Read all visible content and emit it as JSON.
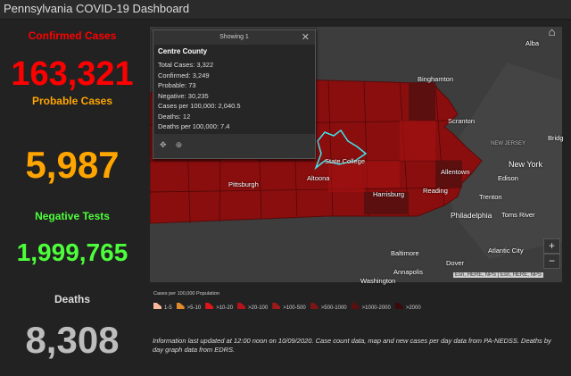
{
  "title": "Pennsylvania COVID-19 Dashboard",
  "stats": [
    {
      "label": "Confirmed Cases",
      "value": "163,321",
      "color": "#ff0000"
    },
    {
      "label": "Probable Cases",
      "value": "5,987",
      "color": "#ffa500"
    },
    {
      "label": "Negative Tests",
      "value": "1,999,765",
      "color": "#4cff3a"
    },
    {
      "label": "Deaths",
      "value": "8,308",
      "color": "#bdbdbd"
    }
  ],
  "popup": {
    "header": "Showing 1",
    "county": "Centre County",
    "lines": [
      "Total Cases: 3,322",
      "Confirmed: 3,249",
      "Probable: 73",
      "Negative: 30,235",
      "Cases per 100,000: 2,040.5",
      "Deaths: 12",
      "Deaths per 100,000: 7.4"
    ]
  },
  "map": {
    "labels": [
      "Alba",
      "Binghamton",
      "Scranton",
      "NEW JERSEY",
      "Bridg",
      "New York",
      "Edison",
      "Allentown",
      "Trenton",
      "Reading",
      "Philadelphia",
      "Toms River",
      "Harrisburg",
      "Altoona",
      "State College",
      "Pittsburgh",
      "Baltimore",
      "Annapolis",
      "Washington",
      "Dover",
      "Atlantic City"
    ],
    "zoom_in": "+",
    "zoom_out": "−",
    "attribution": "Esri, HERE, NPS | Esri, HERE, NPS",
    "highlight_color": "#3ee8f0"
  },
  "legend": {
    "title": "Cases per 100,000 Population",
    "items": [
      {
        "label": "1-5",
        "color": "#f9b99a"
      },
      {
        "label": ">5-10",
        "color": "#e08a2c"
      },
      {
        "label": ">10-20",
        "color": "#e0151a"
      },
      {
        "label": ">20-100",
        "color": "#b5121b"
      },
      {
        "label": ">100-500",
        "color": "#9c1a1a"
      },
      {
        "label": ">500-1000",
        "color": "#7d1515"
      },
      {
        "label": ">1000-2000",
        "color": "#5c0f0f"
      },
      {
        "label": ">2000",
        "color": "#3d0a0a"
      }
    ]
  },
  "info": "Information last updated at 12:00 noon on 10/09/2020. Case count data, map and new cases per day data from PA-NEDSS. Deaths by day graph data from EDRS."
}
